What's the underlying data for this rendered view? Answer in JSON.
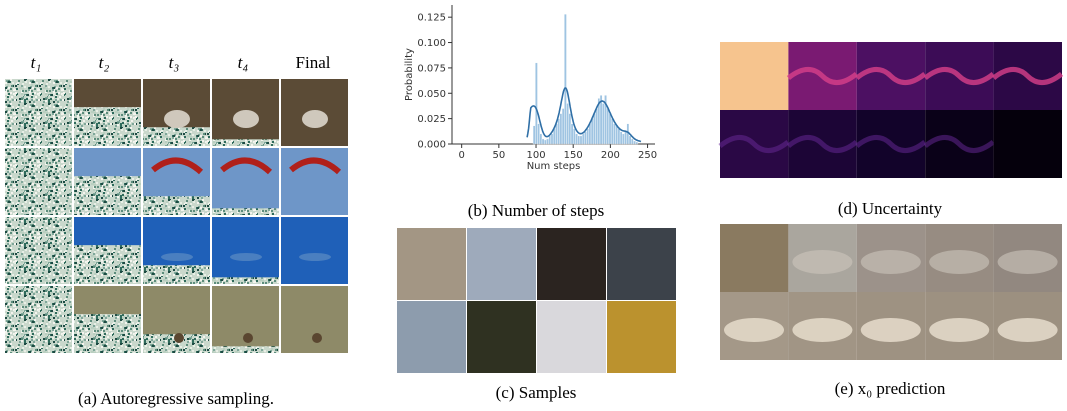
{
  "figure": {
    "column_headers": [
      "t₁",
      "t₂",
      "t₃",
      "t₄",
      "Final"
    ],
    "captions": [
      "(a) Autoregressive sampling.",
      "(b) Number of steps",
      "(c) Samples",
      "(d) Uncertainty",
      "(e) x₀ prediction"
    ]
  },
  "chart_data": {
    "type": "histogram",
    "xlabel": "Num steps",
    "ylabel": "Probability",
    "bins": [
      96,
      99,
      102,
      105,
      108,
      111,
      114,
      117,
      120,
      123,
      126,
      129,
      132,
      135,
      138,
      141,
      144,
      147,
      150,
      153,
      156,
      159,
      162,
      165,
      168,
      171,
      174,
      177,
      180,
      183,
      186,
      189,
      192,
      195,
      198,
      201,
      204,
      207,
      210,
      213,
      216,
      219,
      222,
      225,
      228,
      231,
      234,
      237
    ],
    "values": [
      0.018,
      0.08,
      0.02,
      0.01,
      0.005,
      0.004,
      0.005,
      0.008,
      0.01,
      0.015,
      0.02,
      0.025,
      0.03,
      0.035,
      0.128,
      0.04,
      0.03,
      0.02,
      0.015,
      0.01,
      0.008,
      0.008,
      0.01,
      0.012,
      0.015,
      0.02,
      0.025,
      0.03,
      0.035,
      0.045,
      0.048,
      0.04,
      0.048,
      0.035,
      0.03,
      0.025,
      0.02,
      0.018,
      0.015,
      0.012,
      0.01,
      0.012,
      0.02,
      0.008,
      0.005,
      0.003,
      0.002
    ],
    "color": "#8fbadd",
    "line_color": "#2f6fa6",
    "xlim": [
      -13,
      260
    ],
    "ylim": [
      0,
      0.137
    ],
    "xticks": [
      0,
      50,
      100,
      150,
      200,
      250
    ],
    "yticks": [
      {
        "value": 0,
        "label": "0.000"
      },
      {
        "value": 0.025,
        "label": "0.025"
      },
      {
        "value": 0.05,
        "label": "0.050"
      },
      {
        "value": 0.075,
        "label": "0.075"
      },
      {
        "value": 0.1,
        "label": "0.100"
      },
      {
        "value": 0.125,
        "label": "0.125"
      }
    ]
  }
}
